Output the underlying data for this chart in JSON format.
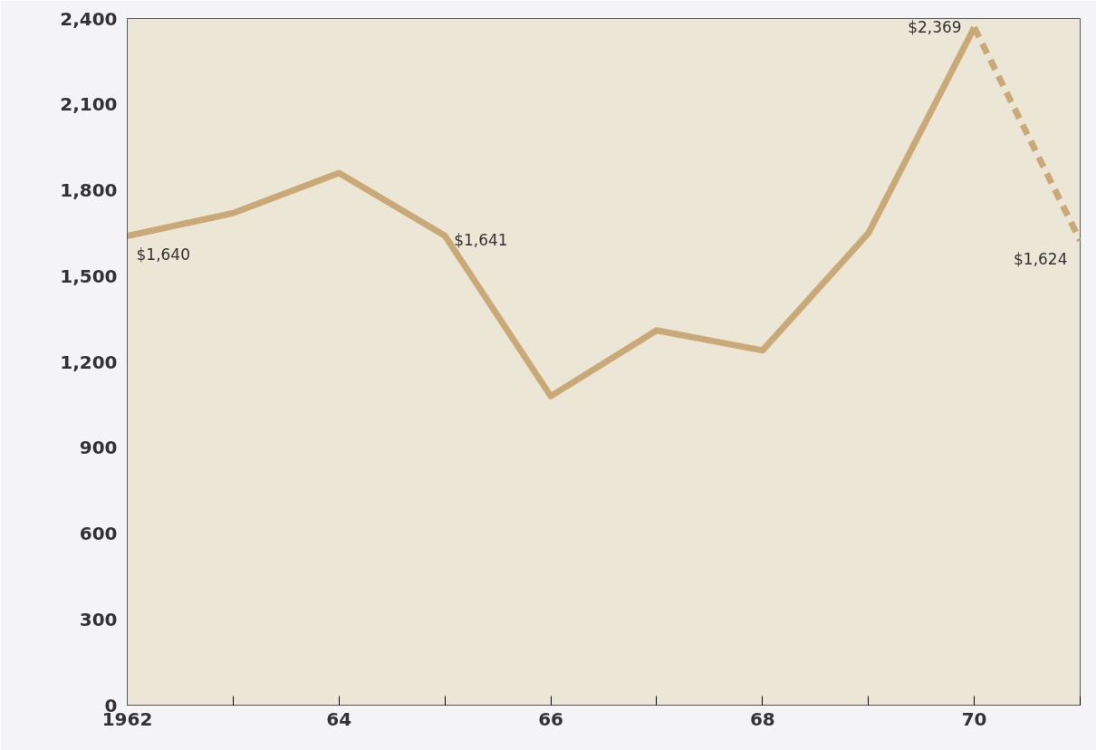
{
  "chart_data": {
    "type": "line",
    "series": [
      {
        "color": "#c9a977",
        "line_style": "solid",
        "x": [
          1962,
          1963,
          1964,
          1965,
          1966,
          1967,
          1968,
          1969,
          1970
        ],
        "values": [
          1640,
          1720,
          1860,
          1641,
          1080,
          1310,
          1240,
          1650,
          2369
        ],
        "value_labels": [
          "$1,640",
          null,
          null,
          "$1,641",
          null,
          null,
          null,
          null,
          "$2,369"
        ]
      },
      {
        "color": "#c9a977",
        "line_style": "dashed",
        "x": [
          1970,
          1971
        ],
        "values": [
          2369,
          1624
        ],
        "value_labels": [
          null,
          "$1,624"
        ]
      }
    ],
    "xlim": [
      1962,
      1971
    ],
    "xticks": [
      1962,
      {
        "value": 1963,
        "label": null
      },
      {
        "value": 1964,
        "label": "64"
      },
      {
        "value": 1965,
        "label": null
      },
      {
        "value": 1966,
        "label": "66"
      },
      {
        "value": 1967,
        "label": null
      },
      {
        "value": 1968,
        "label": "68"
      },
      {
        "value": 1969,
        "label": null
      },
      {
        "value": 1970,
        "label": "70"
      },
      {
        "value": 1971,
        "label": null
      }
    ],
    "ylim": [
      0,
      2400
    ],
    "yticks": [
      0,
      {
        "value": 300,
        "label": "300"
      },
      {
        "value": 600,
        "label": "600"
      },
      {
        "value": 900,
        "label": "900"
      },
      {
        "value": 1200,
        "label": "1,200"
      },
      {
        "value": 1500,
        "label": "1,500"
      },
      {
        "value": 1800,
        "label": "1,800"
      },
      {
        "value": 2100,
        "label": "2,100"
      },
      {
        "value": 2400,
        "label": "2,400"
      }
    ],
    "grid": false,
    "marker": "none"
  }
}
